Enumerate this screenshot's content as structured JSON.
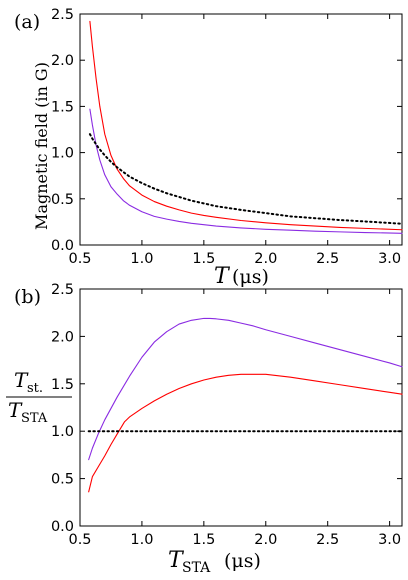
{
  "chart_data": [
    {
      "type": "line",
      "panel_label": "(a)",
      "ylabel": "Magnetic field (in G)",
      "xlabel_main": "T",
      "xlabel_unit": "(μs)",
      "xlim": [
        0.5,
        3.1
      ],
      "ylim": [
        0.0,
        2.5
      ],
      "xticks": [
        "0.5",
        "1.0",
        "1.5",
        "2.0",
        "2.5",
        "3.0"
      ],
      "yticks": [
        "0.0",
        "0.5",
        "1.0",
        "1.5",
        "2.0",
        "2.5"
      ],
      "grid": false,
      "series": [
        {
          "color": "#ff0000",
          "style": "solid",
          "x": [
            0.58,
            0.6,
            0.63,
            0.66,
            0.7,
            0.75,
            0.8,
            0.85,
            0.9,
            1.0,
            1.1,
            1.2,
            1.3,
            1.4,
            1.5,
            1.6,
            1.8,
            2.0,
            2.2,
            2.4,
            2.6,
            2.8,
            3.1
          ],
          "y": [
            2.42,
            2.15,
            1.8,
            1.5,
            1.2,
            0.97,
            0.82,
            0.72,
            0.64,
            0.54,
            0.47,
            0.42,
            0.38,
            0.345,
            0.32,
            0.3,
            0.265,
            0.24,
            0.22,
            0.205,
            0.19,
            0.18,
            0.165
          ]
        },
        {
          "color": "#8a2be2",
          "style": "solid",
          "x": [
            0.58,
            0.6,
            0.63,
            0.66,
            0.7,
            0.75,
            0.8,
            0.85,
            0.9,
            1.0,
            1.1,
            1.2,
            1.3,
            1.4,
            1.5,
            1.6,
            1.8,
            2.0,
            2.2,
            2.4,
            2.6,
            2.8,
            3.1
          ],
          "y": [
            1.47,
            1.3,
            1.08,
            0.92,
            0.76,
            0.63,
            0.55,
            0.48,
            0.43,
            0.36,
            0.31,
            0.28,
            0.255,
            0.235,
            0.22,
            0.205,
            0.185,
            0.17,
            0.16,
            0.15,
            0.142,
            0.135,
            0.127
          ]
        },
        {
          "color": "#000000",
          "style": "dotted",
          "x": [
            0.58,
            0.6,
            0.65,
            0.7,
            0.75,
            0.8,
            0.85,
            0.9,
            1.0,
            1.1,
            1.2,
            1.3,
            1.4,
            1.5,
            1.6,
            1.8,
            2.0,
            2.2,
            2.4,
            2.6,
            2.8,
            3.1
          ],
          "y": [
            1.2,
            1.15,
            1.05,
            0.97,
            0.9,
            0.84,
            0.79,
            0.74,
            0.67,
            0.61,
            0.56,
            0.52,
            0.48,
            0.45,
            0.42,
            0.38,
            0.345,
            0.31,
            0.29,
            0.27,
            0.255,
            0.23
          ]
        }
      ]
    },
    {
      "type": "line",
      "panel_label": "(b)",
      "ylabel_num": "T",
      "ylabel_num_sub": "st.",
      "ylabel_den": "T",
      "ylabel_den_sub": "STA",
      "xlabel_main": "T",
      "xlabel_sub": "STA",
      "xlabel_unit": "(μs)",
      "xlim": [
        0.5,
        3.1
      ],
      "ylim": [
        0.0,
        2.5
      ],
      "xticks": [
        "0.5",
        "1.0",
        "1.5",
        "2.0",
        "2.5",
        "3.0"
      ],
      "yticks": [
        "0.0",
        "0.5",
        "1.0",
        "1.5",
        "2.0",
        "2.5"
      ],
      "grid": false,
      "series": [
        {
          "color": "#8a2be2",
          "style": "solid",
          "x": [
            0.57,
            0.6,
            0.65,
            0.7,
            0.8,
            0.9,
            1.0,
            1.1,
            1.2,
            1.3,
            1.4,
            1.5,
            1.55,
            1.6,
            1.7,
            1.8,
            1.9,
            2.0,
            2.2,
            2.4,
            2.6,
            2.8,
            3.0,
            3.1
          ],
          "y": [
            0.7,
            0.82,
            0.98,
            1.12,
            1.36,
            1.58,
            1.78,
            1.94,
            2.05,
            2.13,
            2.17,
            2.19,
            2.19,
            2.185,
            2.17,
            2.14,
            2.11,
            2.07,
            2.0,
            1.93,
            1.86,
            1.79,
            1.72,
            1.68
          ]
        },
        {
          "color": "#ff0000",
          "style": "solid",
          "x": [
            0.57,
            0.6,
            0.65,
            0.7,
            0.75,
            0.8,
            0.86,
            0.9,
            1.0,
            1.1,
            1.2,
            1.3,
            1.4,
            1.5,
            1.6,
            1.7,
            1.8,
            1.9,
            2.0,
            2.2,
            2.4,
            2.6,
            2.8,
            3.0,
            3.1
          ],
          "y": [
            0.36,
            0.52,
            0.63,
            0.74,
            0.86,
            0.97,
            1.1,
            1.15,
            1.24,
            1.32,
            1.39,
            1.45,
            1.5,
            1.54,
            1.57,
            1.59,
            1.6,
            1.6,
            1.6,
            1.57,
            1.53,
            1.49,
            1.45,
            1.41,
            1.39
          ]
        },
        {
          "color": "#000000",
          "style": "dotted",
          "x": [
            0.57,
            3.1
          ],
          "y": [
            1.0,
            1.0
          ]
        }
      ]
    }
  ]
}
